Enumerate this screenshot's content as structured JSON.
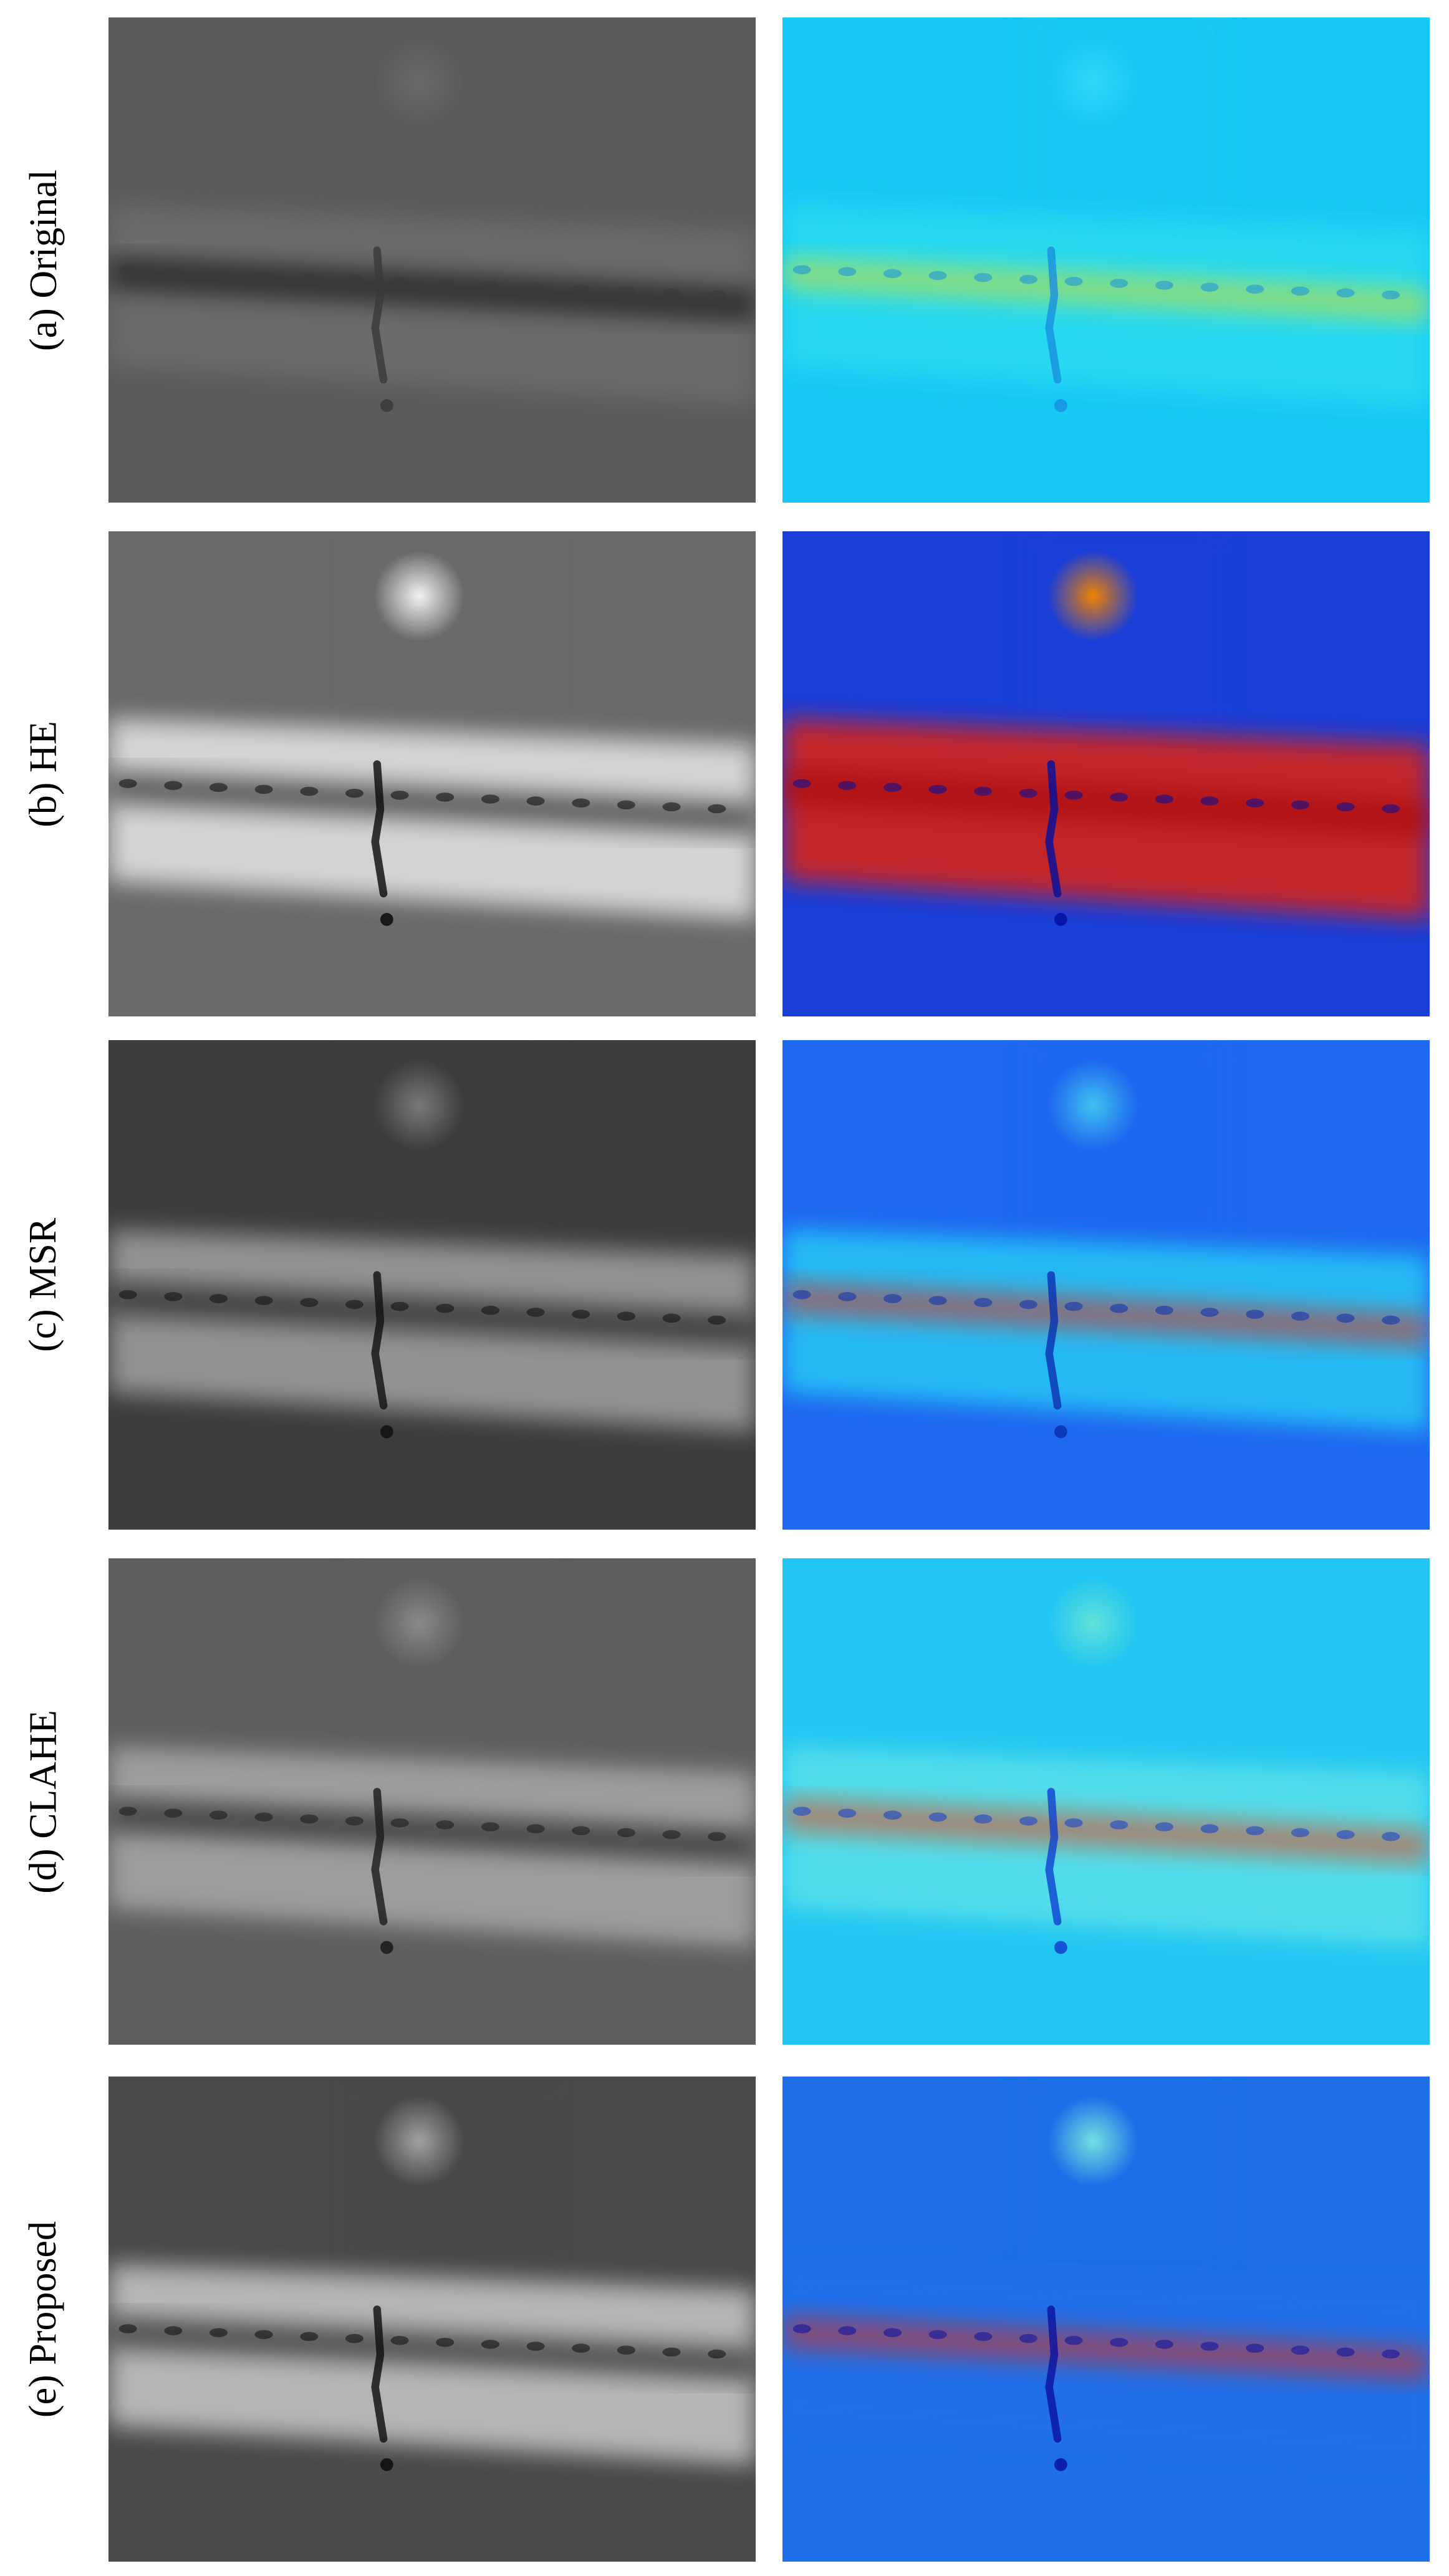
{
  "rows": [
    {
      "label": "(a) Original",
      "colors": {
        "bg": "#5a5a5a",
        "bar": "#6e6e6e",
        "spot": "#6a6a6a",
        "defect": "#3a3a3a"
      },
      "jet": {
        "bg": "#16c8f5",
        "bar": "#2bdcf0",
        "hot": "#d4e020",
        "spot": "#30d8f8",
        "defect": "#1a8fe0"
      }
    },
    {
      "label": "(b) HE",
      "colors": {
        "bg": "#6a6a6a",
        "bar": "#e6e6e6",
        "spot": "#f2f2f2",
        "defect": "#0a0a0a"
      },
      "jet": {
        "bg": "#1b3fd8",
        "bar": "#e02010",
        "hot": "#a00000",
        "spot": "#f08000",
        "defect": "#0010a0"
      }
    },
    {
      "label": "(c) MSR",
      "colors": {
        "bg": "#3c3c3c",
        "bar": "#a0a0a0",
        "spot": "#7a7a7a",
        "defect": "#101010"
      },
      "jet": {
        "bg": "#1f68f0",
        "bar": "#28c8f5",
        "hot": "#e02a10",
        "spot": "#40c0f0",
        "defect": "#0a2fb0"
      }
    },
    {
      "label": "(d) CLAHE",
      "colors": {
        "bg": "#5e5e5e",
        "bar": "#a8a8a8",
        "spot": "#8a8a8a",
        "defect": "#1a1a1a"
      },
      "jet": {
        "bg": "#22c6f2",
        "bar": "#5ae0e8",
        "hot": "#e83a10",
        "spot": "#60e0d8",
        "defect": "#1040d0"
      }
    },
    {
      "label": "(e) Proposed",
      "colors": {
        "bg": "#4a4a4a",
        "bar": "#c8c8c8",
        "spot": "#a0a0a0",
        "defect": "#0c0c0c"
      },
      "jet": {
        "bg": "#1e6fe8",
        "bar": "#2070e8",
        "hot": "#e02a10",
        "spot": "#70e0e0",
        "defect": "#0a10a0"
      }
    }
  ]
}
